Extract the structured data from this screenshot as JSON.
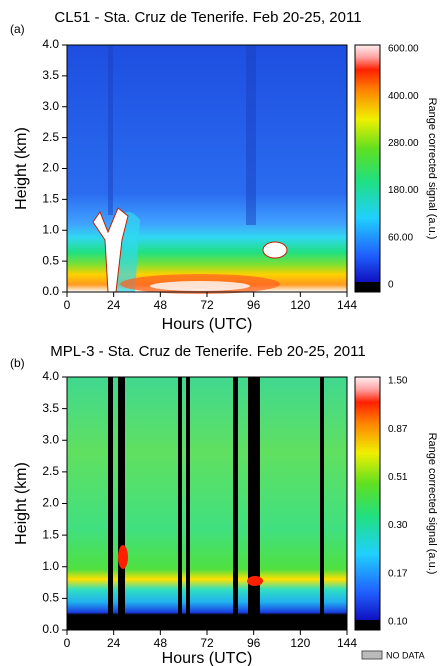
{
  "no_data_label": "NO DATA",
  "chart_data": [
    {
      "type": "heatmap",
      "panel_label": "(a)",
      "title": "CL51 - Sta. Cruz de Tenerife. Feb 20-25, 2011",
      "x_label": "Hours (UTC)",
      "y_label": "Height (km)",
      "xlim": [
        0,
        144
      ],
      "xticks": [
        0,
        24,
        48,
        72,
        96,
        120,
        144
      ],
      "ylim": [
        0,
        4
      ],
      "yticks": [
        {
          "value": 0,
          "label": "0.0"
        },
        {
          "value": 0.5,
          "label": "0.5"
        },
        {
          "value": 1,
          "label": "1.0"
        },
        {
          "value": 1.5,
          "label": "1.5"
        },
        {
          "value": 2,
          "label": "2.0"
        },
        {
          "value": 2.5,
          "label": "2.5"
        },
        {
          "value": 3,
          "label": "3.0"
        },
        {
          "value": 3.5,
          "label": "3.5"
        },
        {
          "value": 4,
          "label": "4.0"
        }
      ],
      "colorbar_label": "Range corrected signal (a.u.)",
      "colorbar_ticks": [
        "0",
        "60.00",
        "180.00",
        "280.00",
        "400.00",
        "600.00"
      ]
    },
    {
      "type": "heatmap",
      "panel_label": "(b)",
      "title": "MPL-3 - Sta. Cruz de Tenerife. Feb 20-25, 2011",
      "x_label": "Hours (UTC)",
      "y_label": "Height (km)",
      "xlim": [
        0,
        144
      ],
      "xticks": [
        0,
        24,
        48,
        72,
        96,
        120,
        144
      ],
      "ylim": [
        0,
        4
      ],
      "yticks": [
        {
          "value": 0,
          "label": "0.0"
        },
        {
          "value": 0.5,
          "label": "0.5"
        },
        {
          "value": 1,
          "label": "1.0"
        },
        {
          "value": 1.5,
          "label": "1.5"
        },
        {
          "value": 2,
          "label": "2.0"
        },
        {
          "value": 2.5,
          "label": "2.5"
        },
        {
          "value": 3,
          "label": "3.0"
        },
        {
          "value": 3.5,
          "label": "3.5"
        },
        {
          "value": 4,
          "label": "4.0"
        }
      ],
      "colorbar_label": "Range corrected signal (a.u.)",
      "colorbar_ticks": [
        "0.10",
        "0.17",
        "0.30",
        "0.51",
        "0.87",
        "1.50"
      ]
    }
  ]
}
